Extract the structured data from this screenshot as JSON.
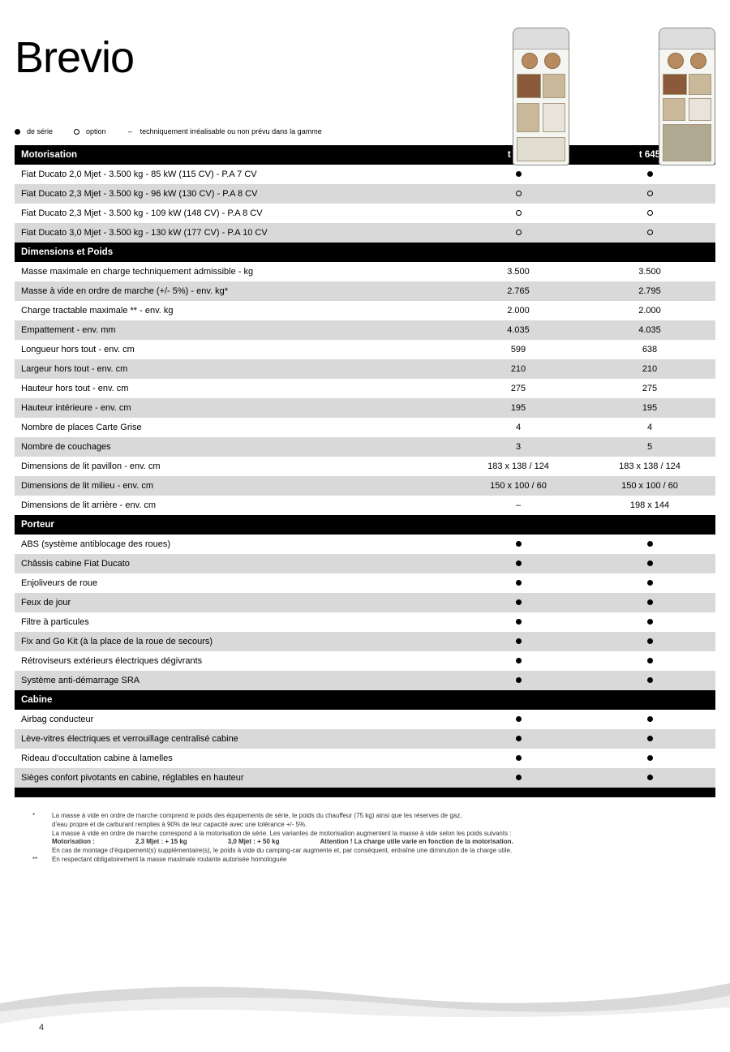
{
  "title": "Brevio",
  "legend": {
    "serie": "de série",
    "option": "option",
    "dash": "–",
    "dash_text": "techniquement irréalisable ou non prévu dans la gamme"
  },
  "columns": {
    "c1": "t 605",
    "c2": "t 645"
  },
  "sections": [
    {
      "header": "Motorisation",
      "rows": [
        {
          "label": "Fiat Ducato 2,0 Mjet - 3.500 kg - 85 kW (115 CV)  -  P.A 7 CV",
          "c1": "●",
          "c2": "●",
          "alt": false
        },
        {
          "label": "Fiat Ducato 2,3 Mjet - 3.500 kg - 96 kW (130 CV)  -  P.A 8 CV",
          "c1": "○",
          "c2": "○",
          "alt": true
        },
        {
          "label": "Fiat Ducato 2,3 Mjet - 3.500 kg - 109 kW (148 CV) - P.A 8 CV",
          "c1": "○",
          "c2": "○",
          "alt": false
        },
        {
          "label": "Fiat Ducato 3,0 Mjet - 3.500 kg - 130 kW (177 CV) - P.A 10 CV",
          "c1": "○",
          "c2": "○",
          "alt": true
        }
      ]
    },
    {
      "header": "Dimensions et Poids",
      "rows": [
        {
          "label": "Masse maximale en charge techniquement admissible - kg",
          "c1": "3.500",
          "c2": "3.500",
          "alt": false
        },
        {
          "label": "Masse à vide en ordre de marche (+/- 5%) - env. kg*",
          "c1": "2.765",
          "c2": "2.795",
          "alt": true
        },
        {
          "label": "Charge tractable maximale ** - env. kg",
          "c1": "2.000",
          "c2": "2.000",
          "alt": false
        },
        {
          "label": "Empattement - env. mm",
          "c1": "4.035",
          "c2": "4.035",
          "alt": true
        },
        {
          "label": "Longueur hors tout - env. cm",
          "c1": "599",
          "c2": "638",
          "alt": false
        },
        {
          "label": "Largeur hors tout - env. cm",
          "c1": "210",
          "c2": "210",
          "alt": true
        },
        {
          "label": "Hauteur hors tout - env. cm",
          "c1": "275",
          "c2": "275",
          "alt": false
        },
        {
          "label": "Hauteur intérieure - env. cm",
          "c1": "195",
          "c2": "195",
          "alt": true
        },
        {
          "label": "Nombre de places Carte Grise",
          "c1": "4",
          "c2": "4",
          "alt": false
        },
        {
          "label": "Nombre de couchages",
          "c1": "3",
          "c2": "5",
          "alt": true
        },
        {
          "label": "Dimensions de lit pavillon - env. cm",
          "c1": "183 x 138  /  124",
          "c2": "183 x 138  /  124",
          "alt": false
        },
        {
          "label": "Dimensions de lit milieu - env. cm",
          "c1": "150 x 100  /  60",
          "c2": "150 x 100  /  60",
          "alt": true
        },
        {
          "label": "Dimensions de lit arrière - env. cm",
          "c1": "–",
          "c2": "198 x 144",
          "alt": false
        }
      ]
    },
    {
      "header": "Porteur",
      "rows": [
        {
          "label": "ABS (système antiblocage des roues)",
          "c1": "●",
          "c2": "●",
          "alt": false
        },
        {
          "label": "Châssis cabine Fiat Ducato",
          "c1": "●",
          "c2": "●",
          "alt": true
        },
        {
          "label": "Enjoliveurs de roue",
          "c1": "●",
          "c2": "●",
          "alt": false
        },
        {
          "label": "Feux de jour",
          "c1": "●",
          "c2": "●",
          "alt": true
        },
        {
          "label": "Filtre à particules",
          "c1": "●",
          "c2": "●",
          "alt": false
        },
        {
          "label": "Fix and Go Kit (à la place de la roue de secours)",
          "c1": "●",
          "c2": "●",
          "alt": true
        },
        {
          "label": "Rétroviseurs extérieurs électriques dégivrants",
          "c1": "●",
          "c2": "●",
          "alt": false
        },
        {
          "label": "Système anti-démarrage SRA",
          "c1": "●",
          "c2": "●",
          "alt": true
        }
      ]
    },
    {
      "header": "Cabine",
      "rows": [
        {
          "label": "Airbag conducteur",
          "c1": "●",
          "c2": "●",
          "alt": false
        },
        {
          "label": "Lève-vitres électriques et verrouillage centralisé cabine",
          "c1": "●",
          "c2": "●",
          "alt": true
        },
        {
          "label": "Rideau d'occultation cabine à lamelles",
          "c1": "●",
          "c2": "●",
          "alt": false
        },
        {
          "label": "Sièges confort pivotants en cabine, réglables en hauteur",
          "c1": "●",
          "c2": "●",
          "alt": true
        }
      ]
    },
    {
      "header": "",
      "rows": []
    }
  ],
  "footnotes": {
    "star": {
      "l1": "La masse à vide en ordre de marche comprend le poids des équipements de série, le poids du chauffeur (75 kg) ainsi que les réserves de gaz,",
      "l2": "d'eau propre et de carburant remplies à 90% de leur capacité avec une tolérance +/- 5%.",
      "l3": "La masse à vide en ordre de marche correspond à la motorisation de série. Les variantes de motorisation augmentent la masse à vide selon les poids suivants :",
      "mot_label": "Motorisation :",
      "mot_23": "2,3 Mjet  : + 15 kg",
      "mot_30": "3,0 Mjet : + 50 kg",
      "attention": "Attention !  La charge utile varie en fonction de la motorisation.",
      "l5": "En cas de montage d'équipement(s) supplémentaire(s), le poids à vide du camping-car augmente et, par conséquent, entraîne une diminution de la charge utile."
    },
    "dstar": "En respectant obligatoirement la masse maximale roulante autorisée homologuée"
  },
  "page_number": "4",
  "colors": {
    "header_bg": "#000000",
    "header_fg": "#ffffff",
    "alt_row_bg": "#d9d9d9",
    "swoosh1": "#d0d0d0",
    "swoosh2": "#eeeeee"
  }
}
